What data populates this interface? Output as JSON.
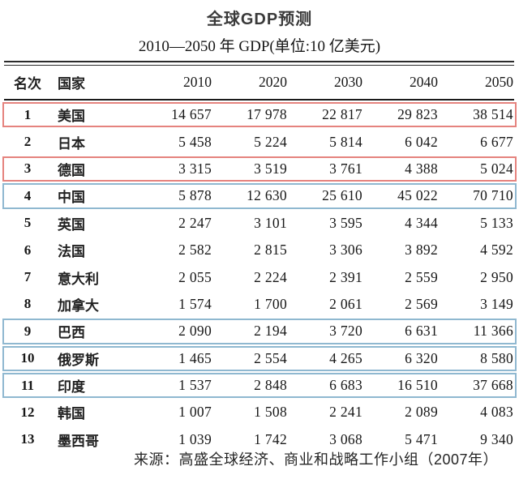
{
  "title": "全球GDP预测",
  "subtitle": "2010—2050 年 GDP(单位:10 亿美元)",
  "source": "来源：高盛全球经济、商业和战略工作小组（2007年）",
  "colors": {
    "highlight_red": "#e5837e",
    "highlight_blue": "#8fb8d0",
    "rule": "#2b2b2b"
  },
  "table": {
    "columns": [
      "名次",
      "国家",
      "2010",
      "2020",
      "2030",
      "2040",
      "2050"
    ],
    "rows": [
      {
        "rank": "1",
        "country": "美国",
        "values": [
          "14 657",
          "17 978",
          "22 817",
          "29 823",
          "38 514"
        ],
        "highlight": "red"
      },
      {
        "rank": "2",
        "country": "日本",
        "values": [
          "5 458",
          "5 224",
          "5 814",
          "6 042",
          "6 677"
        ],
        "highlight": null
      },
      {
        "rank": "3",
        "country": "德国",
        "values": [
          "3 315",
          "3 519",
          "3 761",
          "4 388",
          "5 024"
        ],
        "highlight": "red"
      },
      {
        "rank": "4",
        "country": "中国",
        "values": [
          "5 878",
          "12 630",
          "25 610",
          "45 022",
          "70 710"
        ],
        "highlight": "blue"
      },
      {
        "rank": "5",
        "country": "英国",
        "values": [
          "2 247",
          "3 101",
          "3 595",
          "4 344",
          "5 133"
        ],
        "highlight": null
      },
      {
        "rank": "6",
        "country": "法国",
        "values": [
          "2 582",
          "2 815",
          "3 306",
          "3 892",
          "4 592"
        ],
        "highlight": null
      },
      {
        "rank": "7",
        "country": "意大利",
        "values": [
          "2 055",
          "2 224",
          "2 391",
          "2 559",
          "2 950"
        ],
        "highlight": null
      },
      {
        "rank": "8",
        "country": "加拿大",
        "values": [
          "1 574",
          "1 700",
          "2 061",
          "2 569",
          "3 149"
        ],
        "highlight": null
      },
      {
        "rank": "9",
        "country": "巴西",
        "values": [
          "2 090",
          "2 194",
          "3 720",
          "6 631",
          "11 366"
        ],
        "highlight": "blue"
      },
      {
        "rank": "10",
        "country": "俄罗斯",
        "values": [
          "1 465",
          "2 554",
          "4 265",
          "6 320",
          "8 580"
        ],
        "highlight": "blue"
      },
      {
        "rank": "11",
        "country": "印度",
        "values": [
          "1 537",
          "2 848",
          "6 683",
          "16 510",
          "37 668"
        ],
        "highlight": "blue"
      },
      {
        "rank": "12",
        "country": "韩国",
        "values": [
          "1 007",
          "1 508",
          "2 241",
          "2 089",
          "4 083"
        ],
        "highlight": null
      },
      {
        "rank": "13",
        "country": "墨西哥",
        "values": [
          "1 039",
          "1 742",
          "3 068",
          "5 471",
          "9 340"
        ],
        "highlight": null
      }
    ]
  }
}
